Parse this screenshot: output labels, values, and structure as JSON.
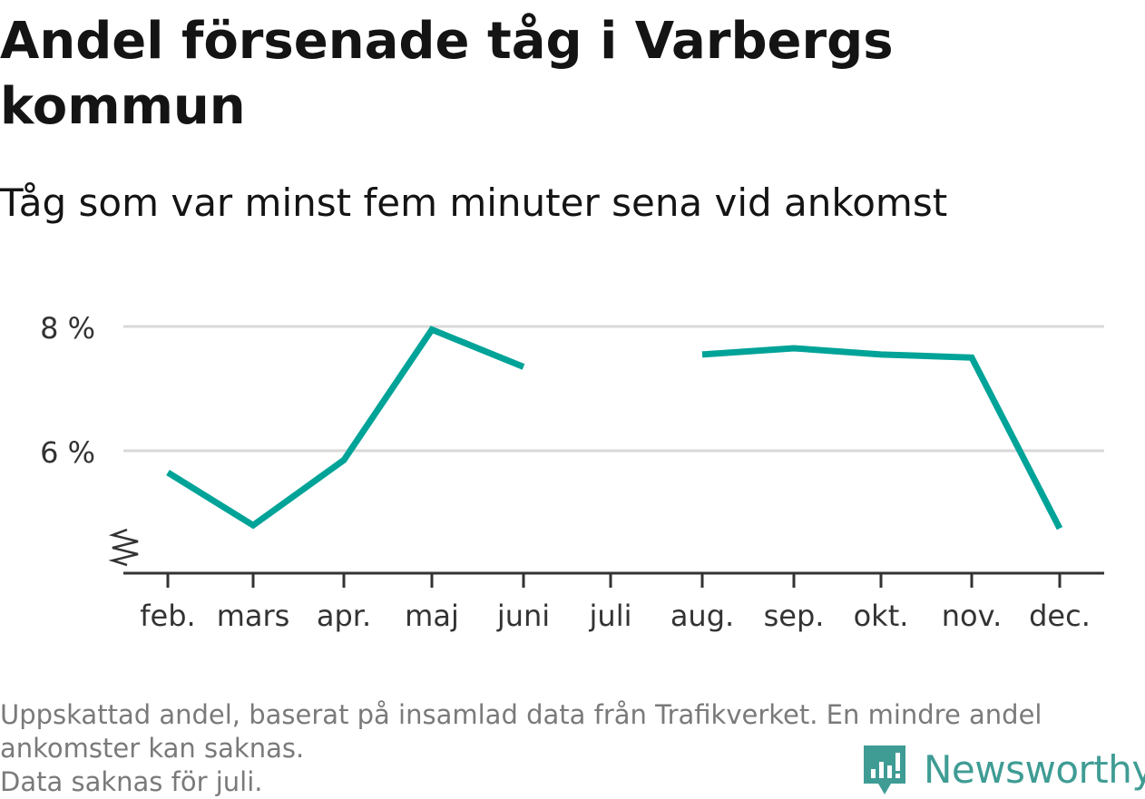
{
  "header": {
    "title": "Andel försenade tåg i Varbergs kommun",
    "subtitle": "Tåg som var minst fem minuter sena vid ankomst"
  },
  "chart_data": {
    "type": "line",
    "categories": [
      "feb.",
      "mars",
      "apr.",
      "maj",
      "juni",
      "juli",
      "aug.",
      "sep.",
      "okt.",
      "nov.",
      "dec."
    ],
    "series": [
      {
        "values": [
          5.65,
          4.8,
          5.85,
          7.95,
          7.35,
          null,
          7.55,
          7.65,
          7.55,
          7.5,
          4.75
        ]
      }
    ],
    "ylim": [
      4.0,
      8.0
    ],
    "yticks": [
      6,
      8
    ],
    "ytick_labels": [
      "6 %",
      "8 %"
    ],
    "xlabel": "",
    "ylabel": "",
    "grid": "horizontal",
    "axis_break": true,
    "line_color": "#00a398"
  },
  "footer": {
    "note_line1": "Uppskattad andel, baserat på insamlad data från Trafikverket. En mindre andel",
    "note_line2": "ankomster kan saknas.",
    "note_line3": "Data saknas för juli.",
    "brand": "Newsworthy",
    "brand_color": "#3f9c94"
  }
}
